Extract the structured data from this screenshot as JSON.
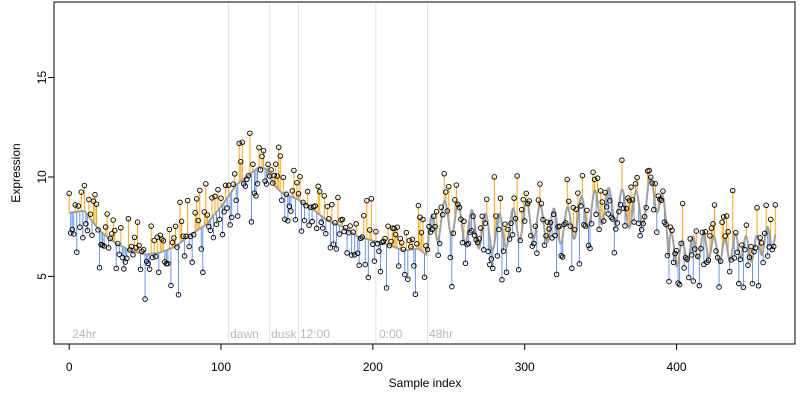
{
  "chart_data": {
    "type": "scatter",
    "title": "",
    "xlabel": "Sample index",
    "ylabel": "Expression",
    "xlim": [
      -10,
      478
    ],
    "ylim": [
      1.6,
      18.8
    ],
    "xticks": [
      0,
      100,
      200,
      300,
      400
    ],
    "yticks": [
      5,
      10,
      15
    ],
    "grid": false,
    "legend": "none",
    "colors": {
      "above_fit": "#ffa500",
      "below_fit": "#6495ed",
      "fit_line": "#a0a0a0",
      "points": "#000000",
      "vlines": "#e3e3e3",
      "annotations": "#b8b8b8"
    },
    "annotations": [
      {
        "label": "24hr",
        "x": 2
      },
      {
        "label": "dawn",
        "x": 106
      },
      {
        "label": "dusk",
        "x": 133
      },
      {
        "label": "12:00",
        "x": 152
      },
      {
        "label": "0:00",
        "x": 204
      },
      {
        "label": "48hr",
        "x": 237
      }
    ],
    "vlines": [
      105,
      132,
      151,
      202,
      236
    ],
    "fit_knots": [
      [
        0,
        8.2
      ],
      [
        10,
        8.3
      ],
      [
        20,
        7.3
      ],
      [
        30,
        6.7
      ],
      [
        40,
        6.3
      ],
      [
        50,
        6.1
      ],
      [
        60,
        6.2
      ],
      [
        70,
        6.5
      ],
      [
        80,
        7.1
      ],
      [
        90,
        7.6
      ],
      [
        100,
        8.5
      ],
      [
        110,
        9.6
      ],
      [
        120,
        10.2
      ],
      [
        125,
        10.5
      ],
      [
        130,
        10.4
      ],
      [
        135,
        9.6
      ],
      [
        140,
        9.2
      ],
      [
        150,
        8.9
      ],
      [
        160,
        8.4
      ],
      [
        170,
        7.8
      ],
      [
        180,
        7.5
      ],
      [
        190,
        7.0
      ],
      [
        200,
        6.8
      ],
      [
        210,
        6.6
      ],
      [
        220,
        6.3
      ],
      [
        230,
        6.4
      ],
      [
        235,
        6.1
      ],
      [
        240,
        7.6
      ],
      [
        250,
        8.0
      ],
      [
        260,
        7.6
      ],
      [
        270,
        7.3
      ],
      [
        280,
        7.2
      ],
      [
        290,
        7.4
      ],
      [
        300,
        7.9
      ],
      [
        310,
        7.7
      ],
      [
        320,
        7.5
      ],
      [
        330,
        7.6
      ],
      [
        340,
        8.3
      ],
      [
        350,
        8.5
      ],
      [
        360,
        8.6
      ],
      [
        370,
        8.3
      ],
      [
        380,
        8.6
      ],
      [
        385,
        9.5
      ],
      [
        390,
        8.5
      ],
      [
        395,
        6.8
      ],
      [
        400,
        6.1
      ],
      [
        410,
        6.4
      ],
      [
        420,
        6.6
      ],
      [
        430,
        6.2
      ],
      [
        440,
        6.6
      ],
      [
        450,
        6.3
      ],
      [
        460,
        6.9
      ],
      [
        465,
        7.1
      ]
    ],
    "fit_wiggle": [
      {
        "from": 236,
        "to": 395,
        "amp": 0.9,
        "period": 9
      },
      {
        "from": 395,
        "to": 466,
        "amp": 0.6,
        "period": 7
      }
    ],
    "n_points": 466,
    "noise_sd": 1.05,
    "seed": 20240611
  }
}
